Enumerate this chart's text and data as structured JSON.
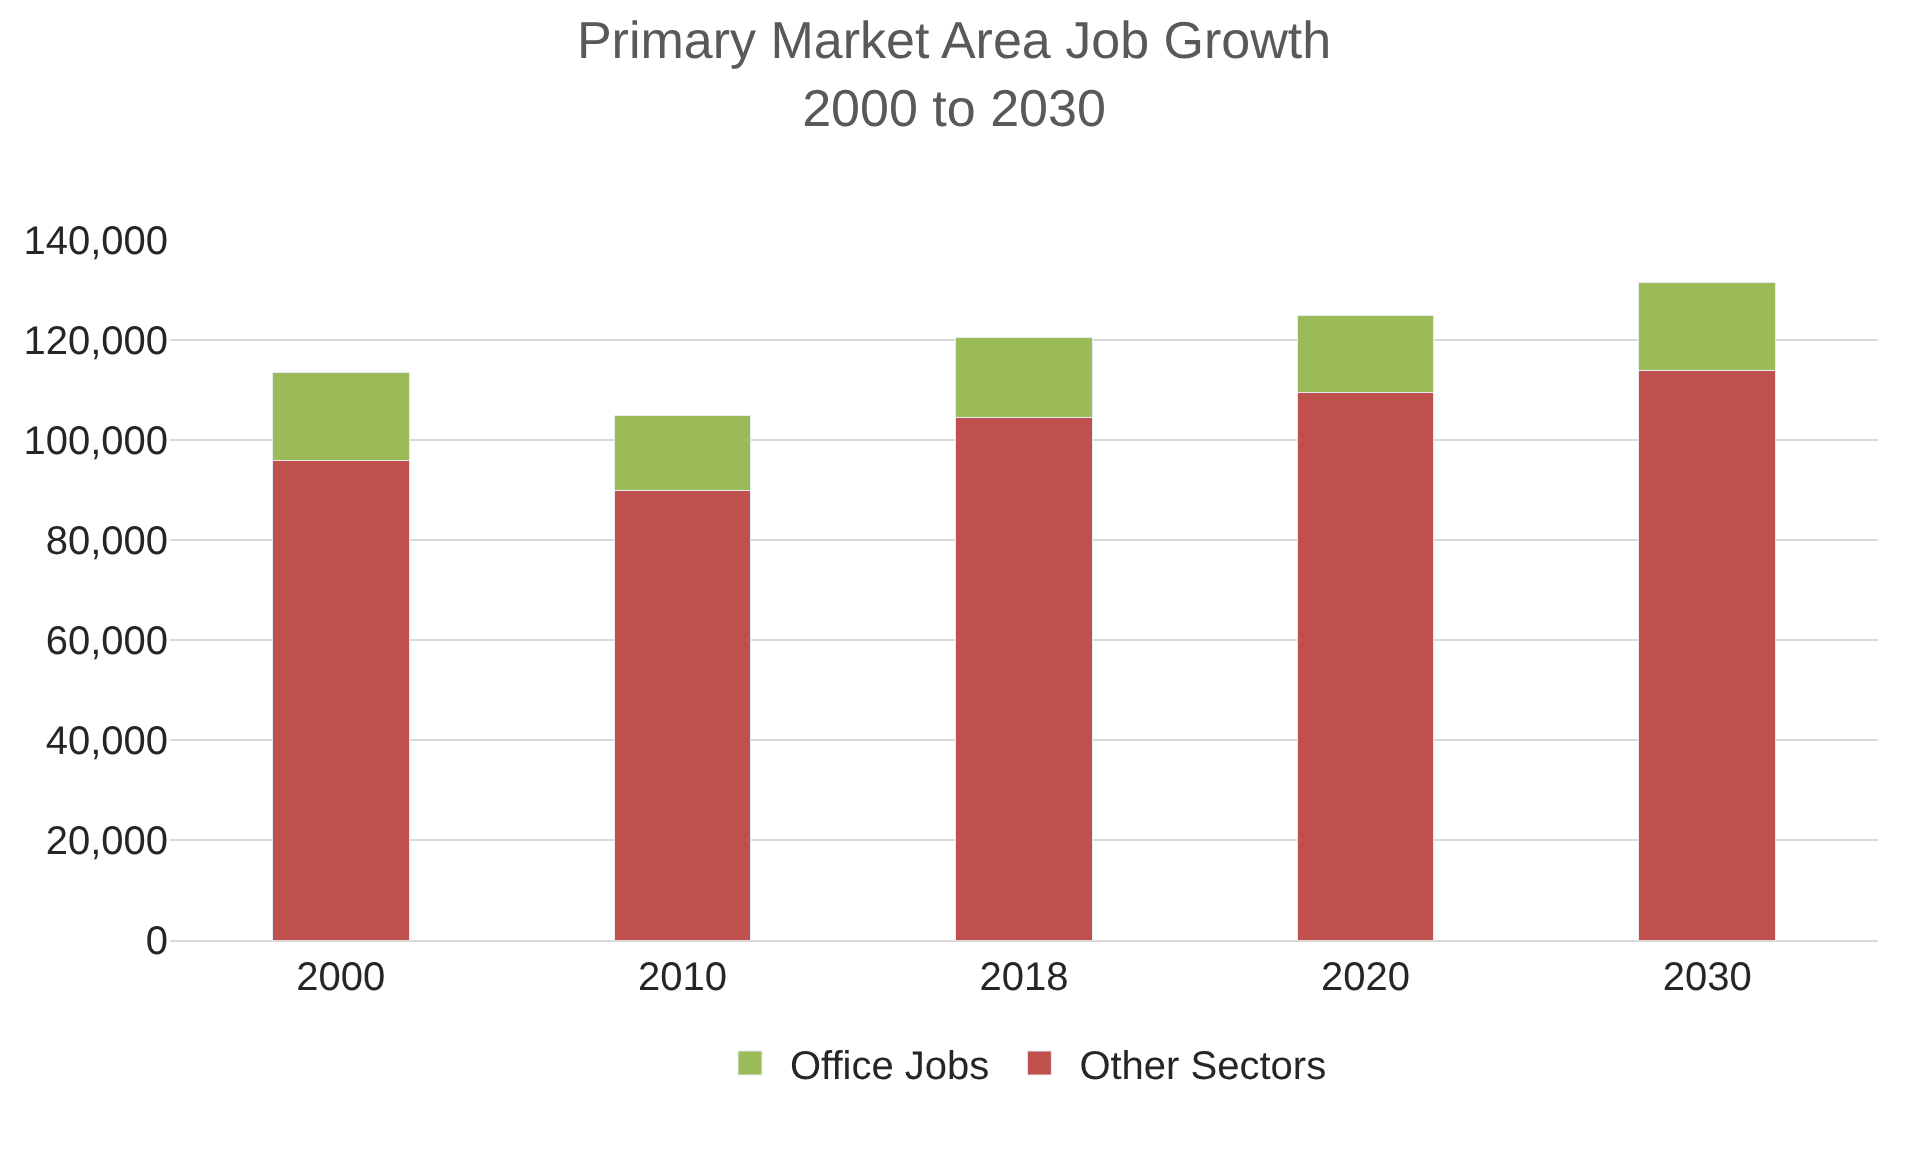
{
  "chart_data": {
    "type": "bar",
    "title": "Primary Market Area Job Growth\n2000 to 2030",
    "categories": [
      "2000",
      "2010",
      "2018",
      "2020",
      "2030"
    ],
    "stacked": true,
    "series": [
      {
        "name": "Other Sectors",
        "color": "#c0504d",
        "values": [
          96000,
          90000,
          104500,
          109500,
          114000
        ]
      },
      {
        "name": "Office Jobs",
        "color": "#9bbb59",
        "values": [
          17500,
          15000,
          16000,
          15500,
          17500
        ]
      }
    ],
    "ylim": [
      0,
      140000
    ],
    "yticks": [
      {
        "value": 0,
        "label": "0"
      },
      {
        "value": 20000,
        "label": "20,000"
      },
      {
        "value": 40000,
        "label": "40,000"
      },
      {
        "value": 60000,
        "label": "60,000"
      },
      {
        "value": 80000,
        "label": "80,000"
      },
      {
        "value": 100000,
        "label": "100,000"
      },
      {
        "value": 120000,
        "label": "120,000"
      },
      {
        "value": 140000,
        "label": "140,000"
      }
    ],
    "grid": "y",
    "legend": "bottom"
  }
}
